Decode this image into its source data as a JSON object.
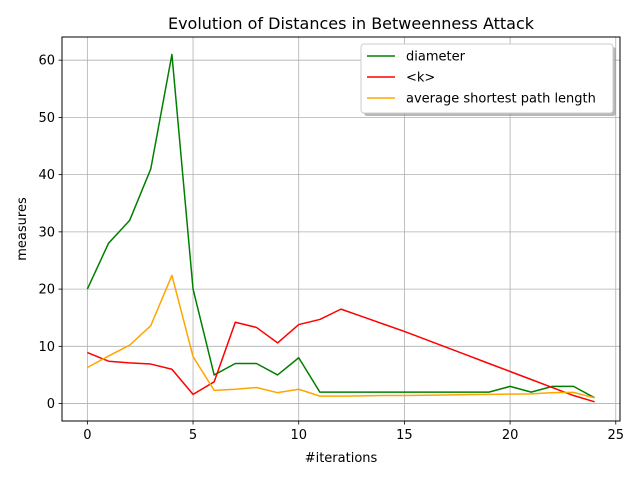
{
  "chart_data": {
    "type": "line",
    "title": "Evolution of Distances in Betweenness Attack",
    "xlabel": "#iterations",
    "ylabel": "measures",
    "xlim": [
      -1.2,
      25.2
    ],
    "ylim": [
      -3.05,
      64.05
    ],
    "xticks": [
      0,
      5,
      10,
      15,
      20,
      25
    ],
    "yticks": [
      0,
      10,
      20,
      30,
      40,
      50,
      60
    ],
    "grid": true,
    "legend_position": "top-right",
    "x": [
      0,
      1,
      2,
      3,
      4,
      5,
      6,
      7,
      8,
      9,
      10,
      11,
      12,
      13,
      14,
      15,
      16,
      17,
      18,
      19,
      20,
      21,
      22,
      23,
      24
    ],
    "series": [
      {
        "name": "diameter",
        "color": "#008000",
        "values": [
          20,
          28,
          32,
          41,
          61,
          20,
          5,
          7,
          7,
          5,
          8,
          2,
          2,
          2,
          2,
          2,
          2,
          2,
          2,
          2,
          3,
          2,
          3,
          3,
          1
        ]
      },
      {
        "name": "<k>",
        "color": "#ff0000",
        "values": [
          8.9,
          7.4,
          7.1,
          6.9,
          6.0,
          1.6,
          3.8,
          14.2,
          13.3,
          10.6,
          13.8,
          14.7,
          16.5,
          15.2,
          13.9,
          12.6,
          11.2,
          9.8,
          8.4,
          7.0,
          5.6,
          4.2,
          2.8,
          1.4,
          0.3
        ]
      },
      {
        "name": "average shortest path length",
        "color": "#ffa500",
        "values": [
          6.3,
          8.3,
          10.2,
          13.6,
          22.4,
          8.2,
          2.3,
          2.5,
          2.8,
          1.9,
          2.5,
          1.3,
          1.3,
          1.35,
          1.4,
          1.4,
          1.45,
          1.5,
          1.55,
          1.6,
          1.65,
          1.7,
          1.9,
          1.95,
          1.0
        ]
      }
    ]
  }
}
